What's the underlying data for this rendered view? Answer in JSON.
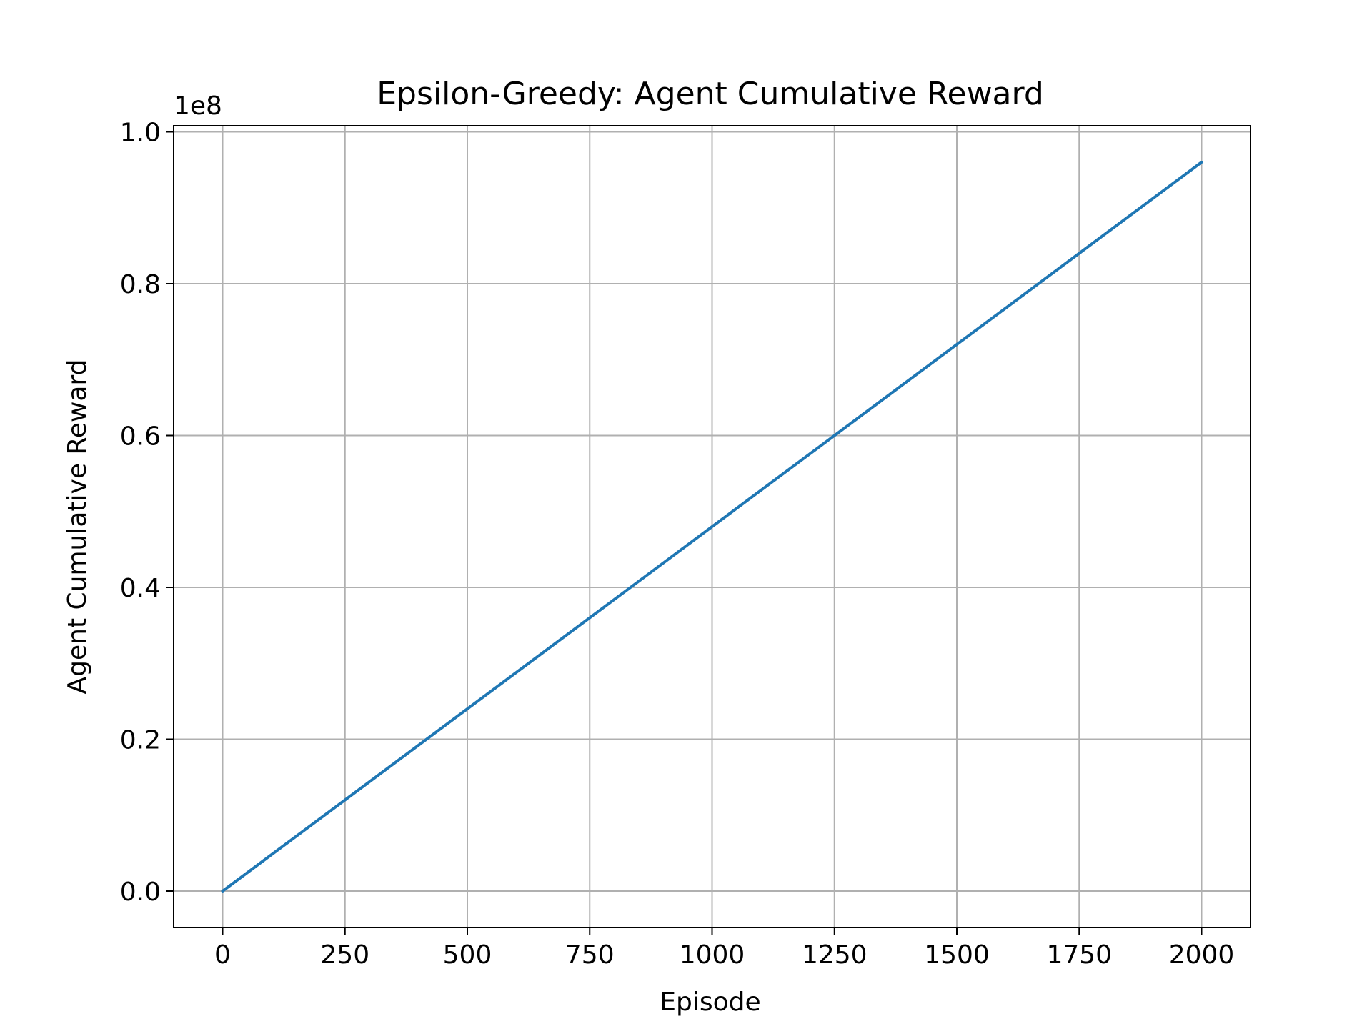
{
  "chart_data": {
    "type": "line",
    "title": "Epsilon-Greedy: Agent Cumulative Reward",
    "xlabel": "Episode",
    "ylabel": "Agent Cumulative Reward",
    "y_offset_label": "1e8",
    "xlim": [
      -100,
      2100
    ],
    "ylim": [
      -0.048,
      1.008
    ],
    "x_ticks": [
      0,
      250,
      500,
      750,
      1000,
      1250,
      1500,
      1750,
      2000
    ],
    "x_tick_labels": [
      "0",
      "250",
      "500",
      "750",
      "1000",
      "1250",
      "1500",
      "1750",
      "2000"
    ],
    "y_ticks": [
      0.0,
      0.2,
      0.4,
      0.6,
      0.8,
      1.0
    ],
    "y_tick_labels": [
      "0.0",
      "0.2",
      "0.4",
      "0.6",
      "0.8",
      "1.0"
    ],
    "grid": true,
    "series": [
      {
        "color": "#1f77b4",
        "x": [
          0,
          250,
          500,
          750,
          1000,
          1250,
          1500,
          1750,
          2000
        ],
        "y": [
          0.0,
          0.12,
          0.24,
          0.36,
          0.48,
          0.6,
          0.72,
          0.84,
          0.96
        ]
      }
    ]
  }
}
